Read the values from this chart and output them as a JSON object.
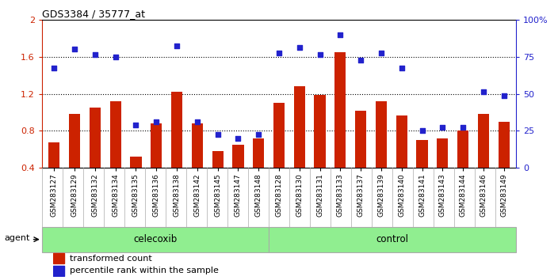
{
  "title": "GDS3384 / 35777_at",
  "categories": [
    "GSM283127",
    "GSM283129",
    "GSM283132",
    "GSM283134",
    "GSM283135",
    "GSM283136",
    "GSM283138",
    "GSM283142",
    "GSM283145",
    "GSM283147",
    "GSM283148",
    "GSM283128",
    "GSM283130",
    "GSM283131",
    "GSM283133",
    "GSM283137",
    "GSM283139",
    "GSM283140",
    "GSM283141",
    "GSM283143",
    "GSM283144",
    "GSM283146",
    "GSM283149"
  ],
  "bar_values": [
    0.68,
    0.98,
    1.05,
    1.12,
    0.52,
    0.88,
    1.22,
    0.88,
    0.58,
    0.65,
    0.72,
    1.1,
    1.28,
    1.19,
    1.65,
    1.02,
    1.12,
    0.97,
    0.7,
    0.72,
    0.8,
    0.98,
    0.9
  ],
  "scatter_values": [
    1.48,
    1.68,
    1.62,
    1.6,
    0.86,
    0.9,
    1.72,
    0.9,
    0.76,
    0.72,
    0.76,
    1.64,
    1.7,
    1.62,
    1.84,
    1.56,
    1.64,
    1.48,
    0.8,
    0.84,
    0.84,
    1.22,
    1.18
  ],
  "bar_color": "#cc2200",
  "scatter_color": "#2222cc",
  "ylim_left": [
    0.4,
    2.0
  ],
  "ylim_right": [
    0,
    100
  ],
  "yticks_left": [
    0.4,
    0.8,
    1.2,
    1.6,
    2.0
  ],
  "ytick_labels_left": [
    "0.4",
    "0.8",
    "1.2",
    "1.6",
    "2"
  ],
  "yticks_right_vals": [
    0,
    25,
    50,
    75,
    100
  ],
  "ytick_labels_right": [
    "0",
    "25",
    "50",
    "75",
    "100%"
  ],
  "celecoxib_count": 11,
  "control_count": 12,
  "agent_label": "agent",
  "celecoxib_label": "celecoxib",
  "control_label": "control",
  "legend_bar": "transformed count",
  "legend_scatter": "percentile rank within the sample",
  "bar_width": 0.55,
  "group_box_color": "#90ee90",
  "group_box_edge": "#aaaaaa"
}
